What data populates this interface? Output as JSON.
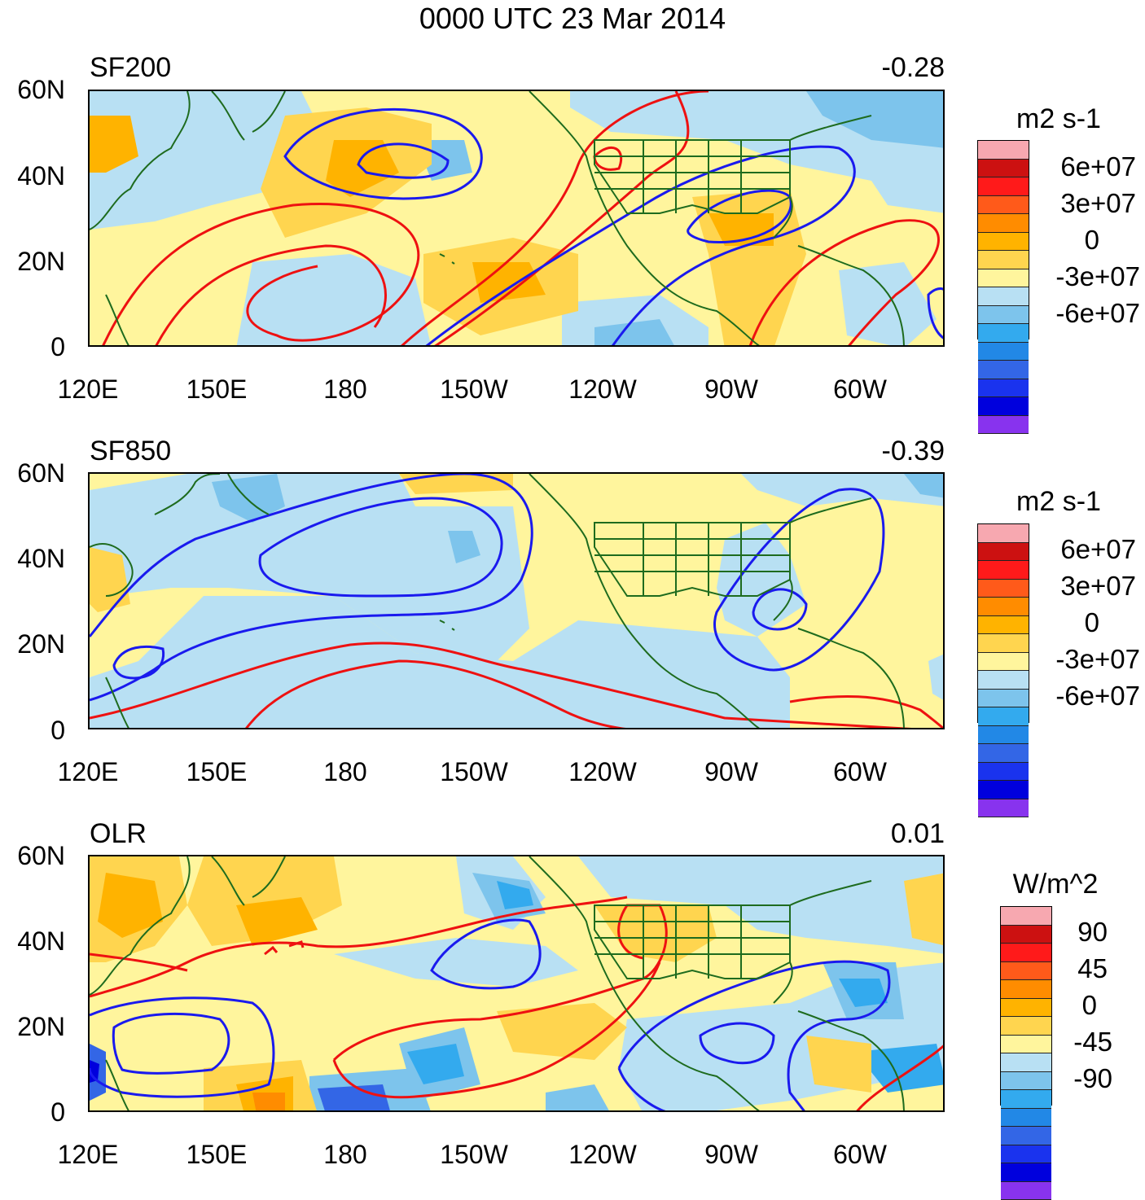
{
  "title": "0000 UTC 23 Mar 2014",
  "x_ticks": [
    "120E",
    "150E",
    "180",
    "150W",
    "120W",
    "90W",
    "60W"
  ],
  "y_ticks": [
    "60N",
    "40N",
    "20N",
    "0"
  ],
  "colors": {
    "pos": [
      "#fff59d",
      "#ffd54f",
      "#ffb300",
      "#ff8c00",
      "#ff5a1a",
      "#ff1a1a",
      "#cc1111",
      "#f7a8b0"
    ],
    "neg": [
      "#b8e0f3",
      "#7dc4ec",
      "#33aaee",
      "#2288e6",
      "#3366e6",
      "#1a33ee",
      "#0000dd",
      "#8833ee"
    ],
    "land": "#1e6b1e",
    "contour_pos": "#ee1111",
    "contour_neg": "#1a1aee"
  },
  "panels": [
    {
      "label": "SF200",
      "value": "-0.28",
      "unit": "m2 s-1",
      "colorbar_labels": [
        "6e+07",
        "3e+07",
        "0",
        "-3e+07",
        "-6e+07"
      ]
    },
    {
      "label": "SF850",
      "value": "-0.39",
      "unit": "m2 s-1",
      "colorbar_labels": [
        "6e+07",
        "3e+07",
        "0",
        "-3e+07",
        "-6e+07"
      ]
    },
    {
      "label": "OLR",
      "value": "0.01",
      "unit": "W/m^2",
      "colorbar_labels": [
        "90",
        "45",
        "0",
        "-45",
        "-90"
      ]
    }
  ]
}
